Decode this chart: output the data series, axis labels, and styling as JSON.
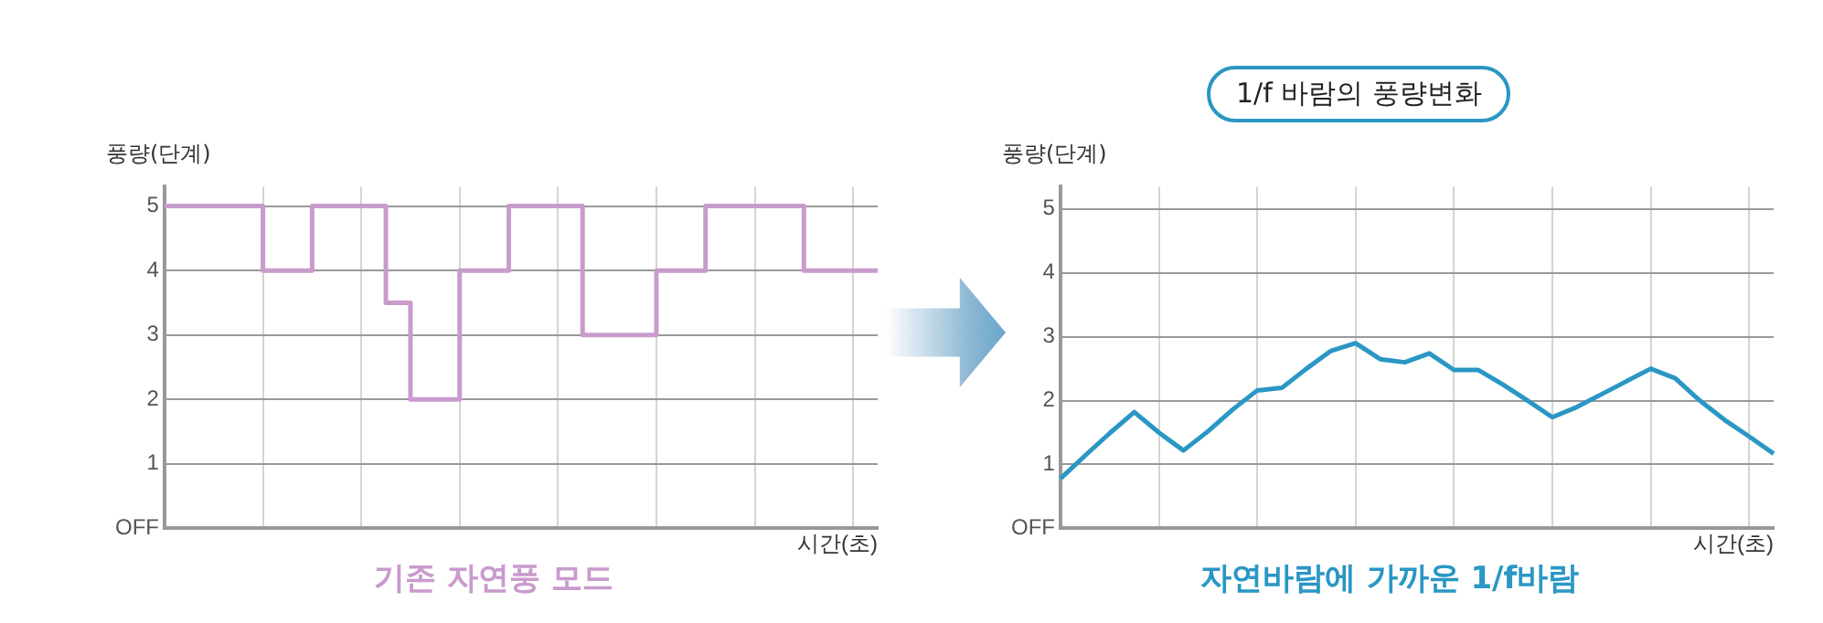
{
  "chart_data": [
    {
      "type": "step",
      "title": "기존 자연풍 모드",
      "xlabel": "시간(초)",
      "ylabel": "풍량(단계)",
      "categories": [
        null,
        null,
        null,
        null,
        null,
        null,
        null,
        null,
        null,
        null,
        null,
        null,
        null,
        null,
        null,
        null,
        null,
        null,
        null,
        null,
        null,
        null,
        null,
        null,
        null,
        null,
        null,
        null,
        null,
        null
      ],
      "series": [
        {
          "color": "#c99bcd",
          "values": [
            5,
            5,
            5,
            5,
            4,
            4,
            5,
            5,
            5,
            3.5,
            2,
            2,
            4,
            4,
            5,
            5,
            5,
            3,
            3,
            3,
            4,
            4,
            5,
            5,
            5,
            5,
            4,
            4,
            4,
            4
          ]
        }
      ],
      "ylim": [
        0,
        5.3
      ],
      "yticks": [
        {
          "value": 0,
          "label": "OFF"
        },
        1,
        2,
        3,
        4,
        5
      ],
      "grid": true,
      "legend": false,
      "tick_labels": "y",
      "line_style": "solid",
      "marker": "none"
    },
    {
      "type": "line",
      "title": "자연바람에 가까운 1/f바람",
      "xlabel": "시간(초)",
      "ylabel": "풍량(단계)",
      "annotations": [
        "1/f 바람의 풍량변화"
      ],
      "categories": [
        null,
        null,
        null,
        null,
        null,
        null,
        null,
        null,
        null,
        null,
        null,
        null,
        null,
        null,
        null,
        null,
        null,
        null,
        null,
        null,
        null,
        null,
        null,
        null,
        null,
        null,
        null,
        null,
        null,
        null
      ],
      "series": [
        {
          "color": "#2a97c4",
          "values": [
            0.78,
            1.14,
            1.49,
            1.82,
            1.5,
            1.22,
            1.52,
            1.86,
            2.16,
            2.2,
            2.5,
            2.78,
            2.9,
            2.65,
            2.6,
            2.74,
            2.48,
            2.48,
            2.25,
            2.0,
            1.74,
            1.9,
            2.1,
            2.3,
            2.5,
            2.35,
            2.0,
            1.7,
            1.44,
            1.17
          ]
        }
      ],
      "ylim": [
        0,
        5.35
      ],
      "yticks": [
        {
          "value": 0,
          "label": "OFF"
        },
        1,
        2,
        3,
        4,
        5
      ],
      "grid": true,
      "legend": false,
      "tick_labels": "y",
      "line_style": "solid",
      "marker": "none"
    }
  ]
}
